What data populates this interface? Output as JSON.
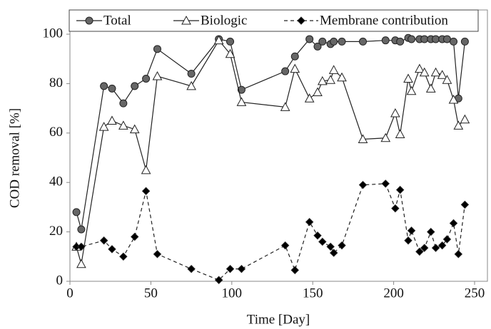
{
  "chart_data": {
    "type": "line",
    "x_label": "Time [Day]",
    "y_label": "COD removal [%]",
    "xlim": [
      0,
      250
    ],
    "xticks": [
      0,
      50,
      100,
      150,
      200,
      250
    ],
    "ylim": [
      0,
      100
    ],
    "yticks": [
      0,
      20,
      40,
      60,
      80,
      100
    ],
    "series": [
      {
        "name": "Total",
        "color": "#666666",
        "marker": "circle",
        "line_style": "solid",
        "x": [
          4,
          7,
          21,
          26,
          33,
          40,
          47,
          54,
          75,
          92,
          99,
          106,
          133,
          139,
          148,
          153,
          156,
          161,
          163,
          168,
          181,
          195,
          201,
          204,
          209,
          211,
          216,
          219,
          223,
          226,
          230,
          233,
          237,
          240,
          244
        ],
        "values": [
          28,
          21,
          79,
          78,
          72,
          79,
          82,
          94,
          84,
          98,
          97,
          77.5,
          85,
          91,
          98,
          95,
          97,
          96,
          97,
          97,
          97,
          97.5,
          97.5,
          97,
          98.5,
          98,
          98,
          98,
          98,
          98,
          98,
          98,
          97,
          74,
          97
        ]
      },
      {
        "name": "Biologic",
        "color": "#ffffff",
        "marker": "triangle",
        "line_style": "solid",
        "x": [
          4,
          7,
          21,
          26,
          33,
          40,
          47,
          54,
          75,
          92,
          99,
          106,
          133,
          139,
          148,
          153,
          156,
          161,
          163,
          168,
          181,
          195,
          201,
          204,
          209,
          211,
          216,
          219,
          223,
          226,
          230,
          233,
          237,
          240,
          244
        ],
        "values": [
          14,
          7,
          62.5,
          65,
          63,
          61.5,
          45,
          83,
          79,
          97.5,
          92,
          72.5,
          70.5,
          86,
          74,
          76.5,
          81,
          81.5,
          85.5,
          82.5,
          57.5,
          58,
          68,
          59.5,
          82,
          77,
          86,
          84.5,
          78,
          84.5,
          83.5,
          81.5,
          73.5,
          63,
          65.5
        ]
      },
      {
        "name": "Membrane contribution",
        "color": "#000000",
        "marker": "diamond",
        "line_style": "dashed",
        "x": [
          4,
          7,
          21,
          26,
          33,
          40,
          47,
          54,
          75,
          92,
          99,
          106,
          133,
          139,
          148,
          153,
          156,
          161,
          163,
          168,
          181,
          195,
          201,
          204,
          209,
          211,
          216,
          219,
          223,
          226,
          230,
          233,
          237,
          240,
          244
        ],
        "values": [
          14,
          14,
          16.5,
          13,
          10,
          18,
          36.5,
          11,
          5,
          0.5,
          5,
          5,
          14.5,
          4.5,
          24,
          18.5,
          16,
          14,
          11.5,
          14.5,
          39,
          39.5,
          29.5,
          37,
          16.5,
          20.5,
          12,
          13.5,
          20,
          13.5,
          14.5,
          17,
          23.5,
          11,
          31
        ]
      }
    ]
  }
}
